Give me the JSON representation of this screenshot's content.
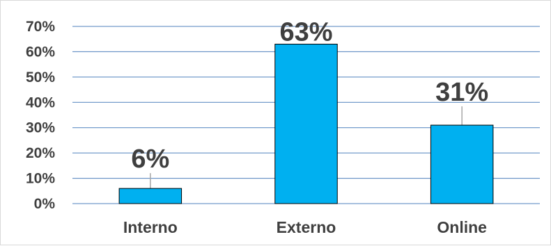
{
  "chart_data": {
    "type": "bar",
    "title": "",
    "xlabel": "",
    "ylabel": "",
    "categories": [
      "Interno",
      "Externo",
      "Online"
    ],
    "values": [
      6,
      63,
      31
    ],
    "data_labels": [
      "6%",
      "63%",
      "31%"
    ],
    "y_ticks": [
      0,
      10,
      20,
      30,
      40,
      50,
      60,
      70
    ],
    "y_tick_labels": [
      "0%",
      "10%",
      "20%",
      "30%",
      "40%",
      "50%",
      "60%",
      "70%"
    ],
    "ylim": [
      0,
      70
    ],
    "grid": true,
    "legend": "none",
    "colors": {
      "bar_fill": "#00b0f0",
      "bar_stroke": "#000000",
      "gridline": "#4f81bd",
      "text": "#3f3f3f",
      "leader_line": "#a6a6a6"
    }
  }
}
